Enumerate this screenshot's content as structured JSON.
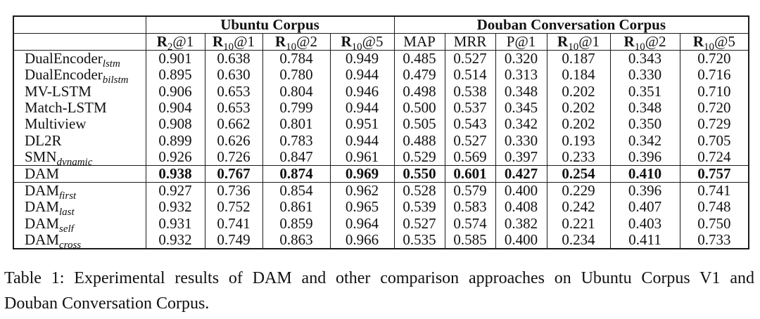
{
  "colors": {
    "background": "#ffffff",
    "text": "#111111",
    "border": "#1b1b1b"
  },
  "table": {
    "column_groups": [
      {
        "label": "Ubuntu Corpus",
        "span": 4
      },
      {
        "label": "Douban Conversation Corpus",
        "span": 6
      }
    ],
    "metric_columns": [
      {
        "base": "R",
        "sub": "2",
        "rest": "@1",
        "bold_base": true
      },
      {
        "base": "R",
        "sub": "10",
        "rest": "@1",
        "bold_base": true
      },
      {
        "base": "R",
        "sub": "10",
        "rest": "@2",
        "bold_base": true
      },
      {
        "base": "R",
        "sub": "10",
        "rest": "@5",
        "bold_base": true
      },
      {
        "base": "MAP",
        "sub": "",
        "rest": "",
        "bold_base": false
      },
      {
        "base": "MRR",
        "sub": "",
        "rest": "",
        "bold_base": false
      },
      {
        "base": "P@1",
        "sub": "",
        "rest": "",
        "bold_base": false
      },
      {
        "base": "R",
        "sub": "10",
        "rest": "@1",
        "bold_base": true
      },
      {
        "base": "R",
        "sub": "10",
        "rest": "@2",
        "bold_base": true
      },
      {
        "base": "R",
        "sub": "10",
        "rest": "@5",
        "bold_base": true
      }
    ],
    "rows": [
      {
        "model": {
          "base": "DualEncoder",
          "sub": "lstm"
        },
        "values": [
          "0.901",
          "0.638",
          "0.784",
          "0.949",
          "0.485",
          "0.527",
          "0.320",
          "0.187",
          "0.343",
          "0.720"
        ],
        "bold_values": false,
        "rule_below": false
      },
      {
        "model": {
          "base": "DualEncoder",
          "sub": "bilstm"
        },
        "values": [
          "0.895",
          "0.630",
          "0.780",
          "0.944",
          "0.479",
          "0.514",
          "0.313",
          "0.184",
          "0.330",
          "0.716"
        ],
        "bold_values": false,
        "rule_below": false
      },
      {
        "model": {
          "base": "MV-LSTM",
          "sub": ""
        },
        "values": [
          "0.906",
          "0.653",
          "0.804",
          "0.946",
          "0.498",
          "0.538",
          "0.348",
          "0.202",
          "0.351",
          "0.710"
        ],
        "bold_values": false,
        "rule_below": false
      },
      {
        "model": {
          "base": "Match-LSTM",
          "sub": ""
        },
        "values": [
          "0.904",
          "0.653",
          "0.799",
          "0.944",
          "0.500",
          "0.537",
          "0.345",
          "0.202",
          "0.348",
          "0.720"
        ],
        "bold_values": false,
        "rule_below": false
      },
      {
        "model": {
          "base": "Multiview",
          "sub": ""
        },
        "values": [
          "0.908",
          "0.662",
          "0.801",
          "0.951",
          "0.505",
          "0.543",
          "0.342",
          "0.202",
          "0.350",
          "0.729"
        ],
        "bold_values": false,
        "rule_below": false
      },
      {
        "model": {
          "base": "DL2R",
          "sub": ""
        },
        "values": [
          "0.899",
          "0.626",
          "0.783",
          "0.944",
          "0.488",
          "0.527",
          "0.330",
          "0.193",
          "0.342",
          "0.705"
        ],
        "bold_values": false,
        "rule_below": false
      },
      {
        "model": {
          "base": "SMN",
          "sub": "dynamic"
        },
        "values": [
          "0.926",
          "0.726",
          "0.847",
          "0.961",
          "0.529",
          "0.569",
          "0.397",
          "0.233",
          "0.396",
          "0.724"
        ],
        "bold_values": false,
        "rule_below": true
      },
      {
        "model": {
          "base": "DAM",
          "sub": ""
        },
        "values": [
          "0.938",
          "0.767",
          "0.874",
          "0.969",
          "0.550",
          "0.601",
          "0.427",
          "0.254",
          "0.410",
          "0.757"
        ],
        "bold_values": true,
        "rule_below": true
      },
      {
        "model": {
          "base": "DAM",
          "sub": "first"
        },
        "values": [
          "0.927",
          "0.736",
          "0.854",
          "0.962",
          "0.528",
          "0.579",
          "0.400",
          "0.229",
          "0.396",
          "0.741"
        ],
        "bold_values": false,
        "rule_below": false
      },
      {
        "model": {
          "base": "DAM",
          "sub": "last"
        },
        "values": [
          "0.932",
          "0.752",
          "0.861",
          "0.965",
          "0.539",
          "0.583",
          "0.408",
          "0.242",
          "0.407",
          "0.748"
        ],
        "bold_values": false,
        "rule_below": false
      },
      {
        "model": {
          "base": "DAM",
          "sub": "self"
        },
        "values": [
          "0.931",
          "0.741",
          "0.859",
          "0.964",
          "0.527",
          "0.574",
          "0.382",
          "0.221",
          "0.403",
          "0.750"
        ],
        "bold_values": false,
        "rule_below": false
      },
      {
        "model": {
          "base": "DAM",
          "sub": "cross"
        },
        "values": [
          "0.932",
          "0.749",
          "0.863",
          "0.966",
          "0.535",
          "0.585",
          "0.400",
          "0.234",
          "0.411",
          "0.733"
        ],
        "bold_values": false,
        "rule_below": false
      }
    ]
  },
  "caption": {
    "lines": [
      "Table 1:  Experimental results of DAM and other comparison approaches on Ubuntu Corpus V1 and",
      "Douban Conversation Corpus."
    ],
    "full_text": "Table 1: Experimental results of DAM and other comparison approaches on Ubuntu Corpus V1 and Douban Conversation Corpus."
  }
}
